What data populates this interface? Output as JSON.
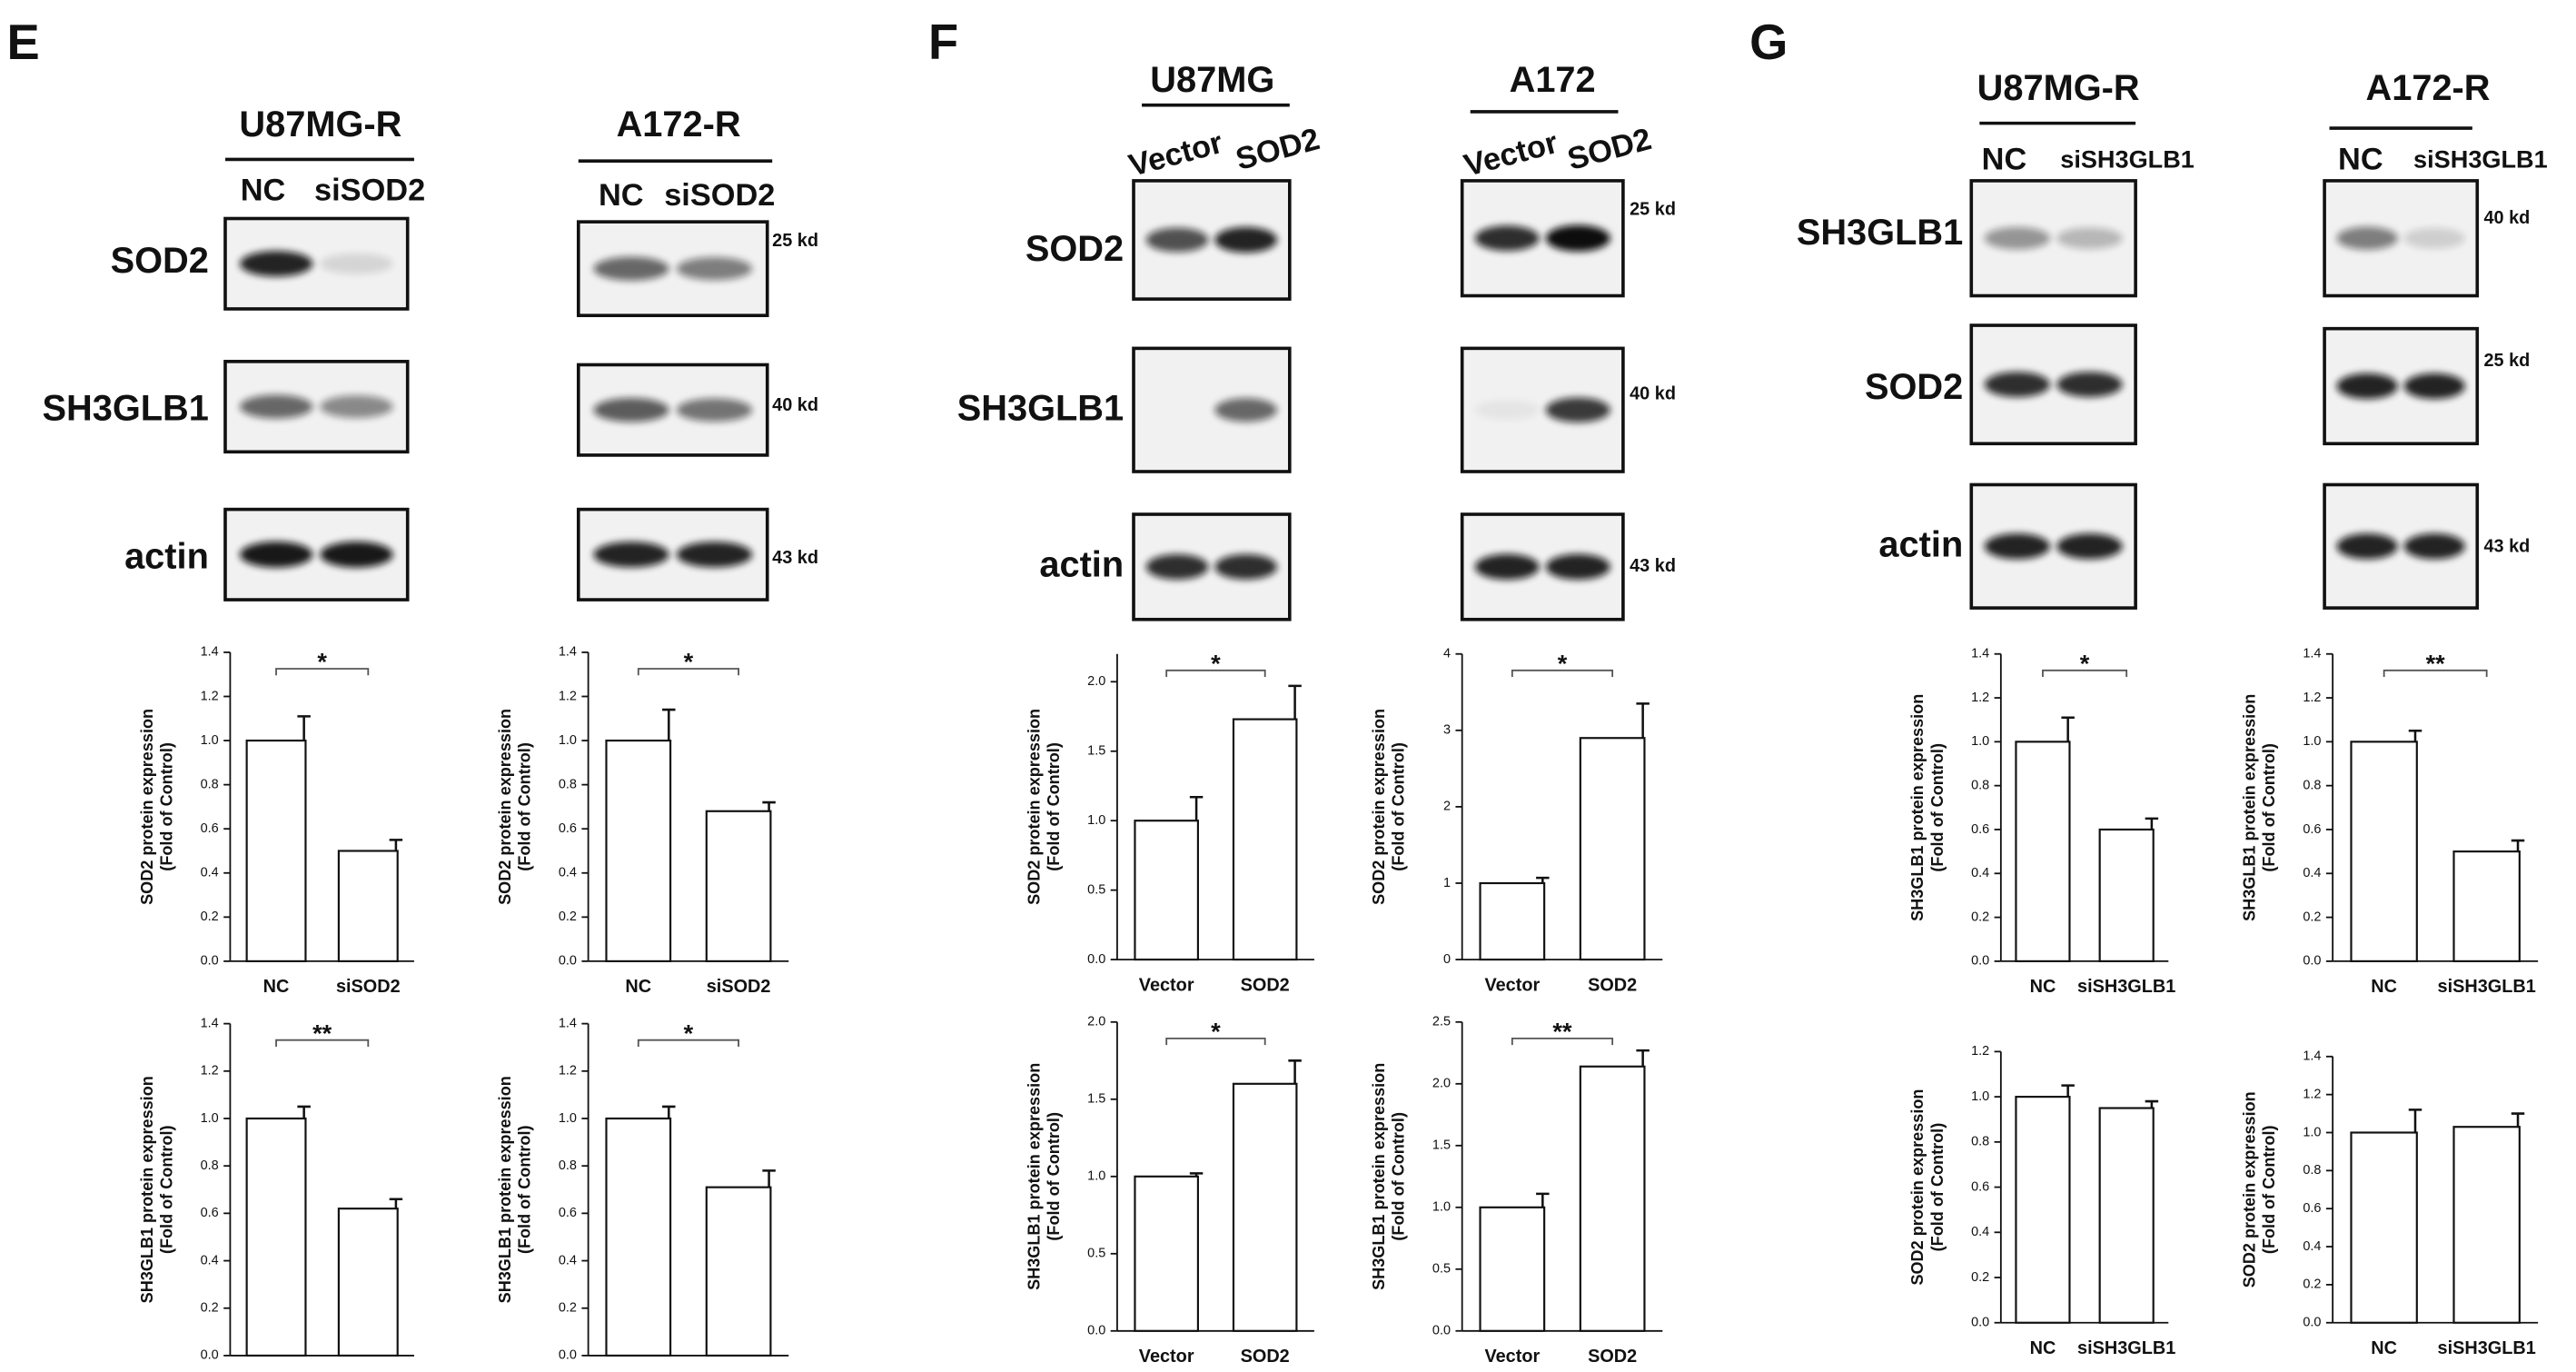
{
  "panels": [
    {
      "letter": "E",
      "row_labels": [
        "SOD2",
        "SH3GLB1",
        "actin"
      ],
      "columns": [
        {
          "cell_line": "U87MG-R",
          "lanes": [
            "NC",
            "siSOD2"
          ]
        },
        {
          "cell_line": "A172-R",
          "lanes": [
            "NC",
            "siSOD2"
          ],
          "markers": [
            "25 kd",
            "40 kd",
            "43 kd"
          ]
        }
      ]
    },
    {
      "letter": "F",
      "row_labels": [
        "SOD2",
        "SH3GLB1",
        "actin"
      ],
      "columns": [
        {
          "cell_line": "U87MG",
          "lanes": [
            "Vector",
            "SOD2"
          ]
        },
        {
          "cell_line": "A172",
          "lanes": [
            "Vector",
            "SOD2"
          ],
          "markers": [
            "25 kd",
            "40 kd",
            "43 kd"
          ]
        }
      ]
    },
    {
      "letter": "G",
      "row_labels": [
        "SH3GLB1",
        "SOD2",
        "actin"
      ],
      "columns": [
        {
          "cell_line": "U87MG-R",
          "lanes": [
            "NC",
            "siSH3GLB1"
          ]
        },
        {
          "cell_line": "A172-R",
          "lanes": [
            "NC",
            "siSH3GLB1"
          ],
          "markers": [
            "40 kd",
            "25 kd",
            "43 kd"
          ]
        }
      ]
    }
  ],
  "chart_data": [
    {
      "type": "bar",
      "ylabel": [
        "SOD2 protein expression",
        "(Fold of Control)"
      ],
      "categories": [
        "NC",
        "siSOD2"
      ],
      "values": [
        1.0,
        0.5
      ],
      "errors": [
        0.11,
        0.05
      ],
      "significance": "*",
      "color": "#ffffff",
      "ylim": [
        0,
        1.4
      ],
      "yticks": [
        {
          "value": 0,
          "label": "0.0"
        },
        {
          "value": 0.2,
          "label": "0.2"
        },
        {
          "value": 0.4,
          "label": "0.4"
        },
        {
          "value": 0.6,
          "label": "0.6"
        },
        {
          "value": 0.8,
          "label": "0.8"
        },
        {
          "value": 1,
          "label": "1.0"
        },
        {
          "value": 1.2,
          "label": "1.2"
        },
        {
          "value": 1.4,
          "label": "1.4"
        }
      ]
    },
    {
      "type": "bar",
      "ylabel": [
        "SH3GLB1 protein expression",
        "(Fold of Control)"
      ],
      "categories": [
        "NC",
        "siSOD2"
      ],
      "values": [
        1.0,
        0.62
      ],
      "errors": [
        0.05,
        0.04
      ],
      "significance": "**",
      "color": "#ffffff",
      "ylim": [
        0,
        1.4
      ],
      "yticks": [
        {
          "value": 0,
          "label": "0.0"
        },
        {
          "value": 0.2,
          "label": "0.2"
        },
        {
          "value": 0.4,
          "label": "0.4"
        },
        {
          "value": 0.6,
          "label": "0.6"
        },
        {
          "value": 0.8,
          "label": "0.8"
        },
        {
          "value": 1,
          "label": "1.0"
        },
        {
          "value": 1.2,
          "label": "1.2"
        },
        {
          "value": 1.4,
          "label": "1.4"
        }
      ]
    },
    {
      "type": "bar",
      "ylabel": [
        "SOD2 protein expression",
        "(Fold of Control)"
      ],
      "categories": [
        "NC",
        "siSOD2"
      ],
      "values": [
        1.0,
        0.68
      ],
      "errors": [
        0.14,
        0.04
      ],
      "significance": "*",
      "color": "#ffffff",
      "ylim": [
        0,
        1.4
      ],
      "yticks": [
        {
          "value": 0,
          "label": "0.0"
        },
        {
          "value": 0.2,
          "label": "0.2"
        },
        {
          "value": 0.4,
          "label": "0.4"
        },
        {
          "value": 0.6,
          "label": "0.6"
        },
        {
          "value": 0.8,
          "label": "0.8"
        },
        {
          "value": 1,
          "label": "1.0"
        },
        {
          "value": 1.2,
          "label": "1.2"
        },
        {
          "value": 1.4,
          "label": "1.4"
        }
      ]
    },
    {
      "type": "bar",
      "ylabel": [
        "SH3GLB1 protein expression",
        "(Fold of Control)"
      ],
      "categories": [
        "NC",
        "siSOD2"
      ],
      "values": [
        1.0,
        0.71
      ],
      "errors": [
        0.05,
        0.07
      ],
      "significance": "*",
      "color": "#ffffff",
      "ylim": [
        0,
        1.4
      ],
      "yticks": [
        {
          "value": 0,
          "label": "0.0"
        },
        {
          "value": 0.2,
          "label": "0.2"
        },
        {
          "value": 0.4,
          "label": "0.4"
        },
        {
          "value": 0.6,
          "label": "0.6"
        },
        {
          "value": 0.8,
          "label": "0.8"
        },
        {
          "value": 1,
          "label": "1.0"
        },
        {
          "value": 1.2,
          "label": "1.2"
        },
        {
          "value": 1.4,
          "label": "1.4"
        }
      ]
    },
    {
      "type": "bar",
      "ylabel": [
        "SOD2 protein expression",
        "(Fold of Control)"
      ],
      "categories": [
        "Vector",
        "SOD2"
      ],
      "values": [
        1.0,
        1.73
      ],
      "errors": [
        0.17,
        0.24
      ],
      "significance": "*",
      "color": "#ffffff",
      "ylim": [
        0,
        2.2
      ],
      "yticks": [
        {
          "value": 0,
          "label": "0.0"
        },
        {
          "value": 0.5,
          "label": "0.5"
        },
        {
          "value": 1,
          "label": "1.0"
        },
        {
          "value": 1.5,
          "label": "1.5"
        },
        {
          "value": 2,
          "label": "2.0"
        }
      ]
    },
    {
      "type": "bar",
      "ylabel": [
        "SH3GLB1 protein expression",
        "(Fold of Control)"
      ],
      "categories": [
        "Vector",
        "SOD2"
      ],
      "values": [
        1.0,
        1.6
      ],
      "errors": [
        0.02,
        0.15
      ],
      "significance": "*",
      "color": "#ffffff",
      "ylim": [
        0,
        2.0
      ],
      "yticks": [
        {
          "value": 0,
          "label": "0.0"
        },
        {
          "value": 0.5,
          "label": "0.5"
        },
        {
          "value": 1,
          "label": "1.0"
        },
        {
          "value": 1.5,
          "label": "1.5"
        },
        {
          "value": 2,
          "label": "2.0"
        }
      ]
    },
    {
      "type": "bar",
      "ylabel": [
        "SOD2 protein expression",
        "(Fold of Control)"
      ],
      "categories": [
        "Vector",
        "SOD2"
      ],
      "values": [
        1.0,
        2.9
      ],
      "errors": [
        0.07,
        0.45
      ],
      "significance": "*",
      "color": "#ffffff",
      "ylim": [
        0,
        4
      ],
      "yticks": [
        0,
        1,
        2,
        3,
        4
      ]
    },
    {
      "type": "bar",
      "ylabel": [
        "SH3GLB1 protein expression",
        "(Fold of Control)"
      ],
      "categories": [
        "Vector",
        "SOD2"
      ],
      "values": [
        1.0,
        2.14
      ],
      "errors": [
        0.11,
        0.13
      ],
      "significance": "**",
      "color": "#ffffff",
      "ylim": [
        0,
        2.5
      ],
      "yticks": [
        {
          "value": 0,
          "label": "0.0"
        },
        {
          "value": 0.5,
          "label": "0.5"
        },
        {
          "value": 1,
          "label": "1.0"
        },
        {
          "value": 1.5,
          "label": "1.5"
        },
        {
          "value": 2,
          "label": "2.0"
        },
        {
          "value": 2.5,
          "label": "2.5"
        }
      ]
    },
    {
      "type": "bar",
      "ylabel": [
        "SH3GLB1 protein expression",
        "(Fold of Control)"
      ],
      "categories": [
        "NC",
        "siSH3GLB1"
      ],
      "values": [
        1.0,
        0.6
      ],
      "errors": [
        0.11,
        0.05
      ],
      "significance": "*",
      "color": "#ffffff",
      "ylim": [
        0,
        1.4
      ],
      "yticks": [
        {
          "value": 0,
          "label": "0.0"
        },
        {
          "value": 0.2,
          "label": "0.2"
        },
        {
          "value": 0.4,
          "label": "0.4"
        },
        {
          "value": 0.6,
          "label": "0.6"
        },
        {
          "value": 0.8,
          "label": "0.8"
        },
        {
          "value": 1,
          "label": "1.0"
        },
        {
          "value": 1.2,
          "label": "1.2"
        },
        {
          "value": 1.4,
          "label": "1.4"
        }
      ]
    },
    {
      "type": "bar",
      "ylabel": [
        "SOD2 protein expression",
        "(Fold of Control)"
      ],
      "categories": [
        "NC",
        "siSH3GLB1"
      ],
      "values": [
        1.0,
        0.95
      ],
      "errors": [
        0.05,
        0.03
      ],
      "color": "#ffffff",
      "ylim": [
        0,
        1.2
      ],
      "yticks": [
        {
          "value": 0,
          "label": "0.0"
        },
        {
          "value": 0.2,
          "label": "0.2"
        },
        {
          "value": 0.4,
          "label": "0.4"
        },
        {
          "value": 0.6,
          "label": "0.6"
        },
        {
          "value": 0.8,
          "label": "0.8"
        },
        {
          "value": 1,
          "label": "1.0"
        },
        {
          "value": 1.2,
          "label": "1.2"
        }
      ]
    },
    {
      "type": "bar",
      "ylabel": [
        "SH3GLB1 protein expression",
        "(Fold of Control)"
      ],
      "categories": [
        "NC",
        "siSH3GLB1"
      ],
      "values": [
        1.0,
        0.5
      ],
      "errors": [
        0.05,
        0.05
      ],
      "significance": "**",
      "color": "#ffffff",
      "ylim": [
        0,
        1.4
      ],
      "yticks": [
        {
          "value": 0,
          "label": "0.0"
        },
        {
          "value": 0.2,
          "label": "0.2"
        },
        {
          "value": 0.4,
          "label": "0.4"
        },
        {
          "value": 0.6,
          "label": "0.6"
        },
        {
          "value": 0.8,
          "label": "0.8"
        },
        {
          "value": 1,
          "label": "1.0"
        },
        {
          "value": 1.2,
          "label": "1.2"
        },
        {
          "value": 1.4,
          "label": "1.4"
        }
      ]
    },
    {
      "type": "bar",
      "ylabel": [
        "SOD2 protein expression",
        "(Fold of Control)"
      ],
      "categories": [
        "NC",
        "siSH3GLB1"
      ],
      "values": [
        1.0,
        1.03
      ],
      "errors": [
        0.12,
        0.07
      ],
      "color": "#ffffff",
      "ylim": [
        0,
        1.4
      ],
      "yticks": [
        {
          "value": 0,
          "label": "0.0"
        },
        {
          "value": 0.2,
          "label": "0.2"
        },
        {
          "value": 0.4,
          "label": "0.4"
        },
        {
          "value": 0.6,
          "label": "0.6"
        },
        {
          "value": 0.8,
          "label": "0.8"
        },
        {
          "value": 1,
          "label": "1.0"
        },
        {
          "value": 1.2,
          "label": "1.2"
        },
        {
          "value": 1.4,
          "label": "1.4"
        }
      ]
    }
  ]
}
